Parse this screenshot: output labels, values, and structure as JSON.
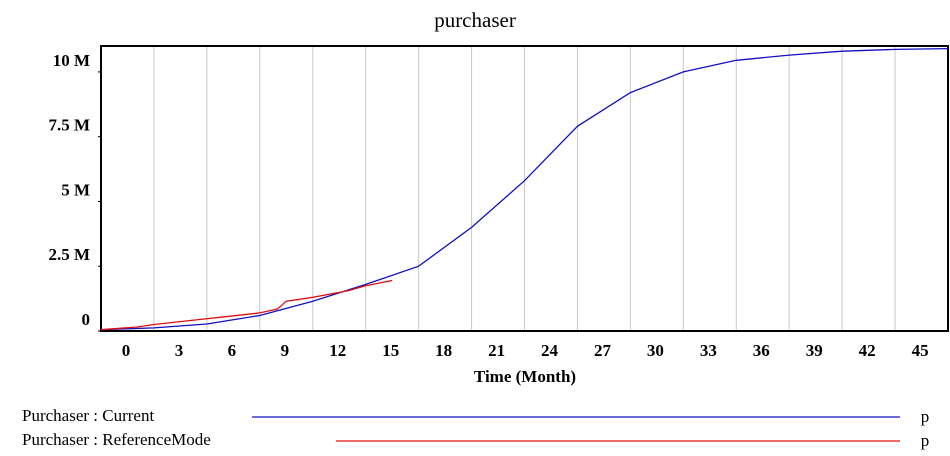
{
  "chart_data": {
    "type": "line",
    "title": "purchaser",
    "x_label": "Time (Month)",
    "xlim": [
      0,
      48
    ],
    "xticks": [
      0,
      3,
      6,
      9,
      12,
      15,
      18,
      21,
      24,
      27,
      30,
      33,
      36,
      39,
      42,
      45
    ],
    "ylim": [
      0,
      11000000
    ],
    "yticks": [
      {
        "value": 0,
        "label": "0"
      },
      {
        "value": 2500000,
        "label": "2.5 M"
      },
      {
        "value": 5000000,
        "label": "5 M"
      },
      {
        "value": 7500000,
        "label": "7.5 M"
      },
      {
        "value": 10000000,
        "label": "10 M"
      }
    ],
    "grid": true,
    "series": [
      {
        "name": "Purchaser : Current",
        "unit": "p",
        "color": "#1010c0",
        "x": [
          0,
          3,
          6,
          9,
          12,
          15,
          18,
          21,
          24,
          27,
          30,
          33,
          36,
          39,
          42,
          45,
          48
        ],
        "values": [
          50000,
          120000,
          270000,
          600000,
          1150000,
          1800000,
          2500000,
          4000000,
          5800000,
          7900000,
          9200000,
          10000000,
          10450000,
          10650000,
          10800000,
          10870000,
          10900000
        ]
      },
      {
        "name": "Purchaser : ReferenceMode",
        "unit": "p",
        "color": "#e01010",
        "x": [
          0,
          2,
          3,
          5,
          7,
          9,
          10,
          10.5,
          12,
          14,
          15,
          16.5
        ],
        "values": [
          50000,
          150000,
          250000,
          400000,
          550000,
          700000,
          850000,
          1150000,
          1300000,
          1550000,
          1750000,
          1950000
        ]
      }
    ]
  }
}
